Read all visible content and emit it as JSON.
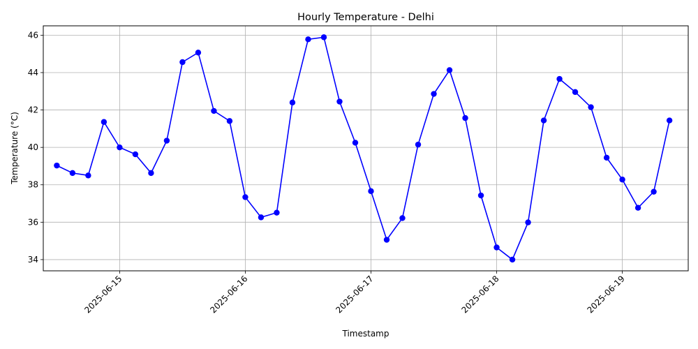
{
  "chart_data": {
    "type": "line",
    "title": "Hourly Temperature - Delhi",
    "xlabel": "Timestamp",
    "ylabel": "Temperature (°C)",
    "x_tick_labels": [
      "2025-06-15",
      "2025-06-16",
      "2025-06-17",
      "2025-06-18",
      "2025-06-19"
    ],
    "y_ticks": [
      34,
      36,
      38,
      40,
      42,
      44,
      46
    ],
    "ylim": [
      33.4,
      46.5
    ],
    "xlim": [
      "2025-06-14 09:25",
      "2025-06-19 12:35"
    ],
    "grid": true,
    "series": [
      {
        "color": "#0000ff",
        "marker": "circle",
        "x": [
          "2025-06-14 12:00",
          "2025-06-14 15:00",
          "2025-06-14 18:00",
          "2025-06-14 21:00",
          "2025-06-15 00:00",
          "2025-06-15 03:00",
          "2025-06-15 06:00",
          "2025-06-15 09:00",
          "2025-06-15 12:00",
          "2025-06-15 15:00",
          "2025-06-15 18:00",
          "2025-06-15 21:00",
          "2025-06-16 00:00",
          "2025-06-16 03:00",
          "2025-06-16 06:00",
          "2025-06-16 09:00",
          "2025-06-16 12:00",
          "2025-06-16 15:00",
          "2025-06-16 18:00",
          "2025-06-16 21:00",
          "2025-06-17 00:00",
          "2025-06-17 03:00",
          "2025-06-17 06:00",
          "2025-06-17 09:00",
          "2025-06-17 12:00",
          "2025-06-17 15:00",
          "2025-06-17 18:00",
          "2025-06-17 21:00",
          "2025-06-18 00:00",
          "2025-06-18 03:00",
          "2025-06-18 06:00",
          "2025-06-18 09:00",
          "2025-06-18 12:00",
          "2025-06-18 15:00",
          "2025-06-18 18:00",
          "2025-06-18 21:00",
          "2025-06-19 00:00",
          "2025-06-19 03:00",
          "2025-06-19 06:00",
          "2025-06-19 09:00"
        ],
        "values": [
          39.03,
          38.63,
          38.5,
          41.36,
          40.0,
          39.63,
          38.63,
          40.36,
          44.56,
          45.07,
          41.95,
          41.41,
          37.34,
          36.26,
          36.51,
          42.4,
          45.78,
          45.89,
          42.45,
          40.25,
          37.66,
          35.06,
          36.22,
          40.15,
          42.86,
          44.13,
          41.57,
          37.43,
          34.65,
          34.0,
          35.99,
          41.44,
          43.66,
          42.96,
          42.15,
          39.45,
          38.28,
          36.77,
          37.63,
          41.44
        ]
      }
    ]
  }
}
